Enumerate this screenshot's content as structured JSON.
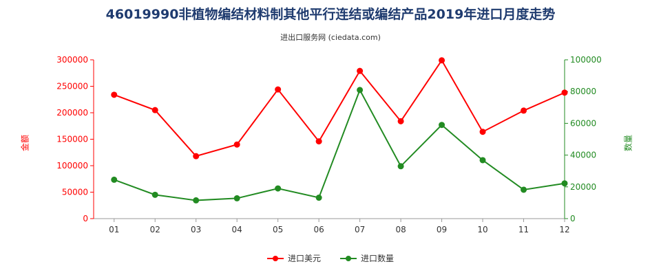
{
  "title": "46019990非植物编结材料制其他平行连结或编结产品2019年进口月度走势",
  "subtitle": "进出口服务网 (ciedata.com)",
  "colors": {
    "amount": "#ff0000",
    "quantity": "#228b22"
  },
  "chart_data": {
    "type": "line",
    "categories": [
      "01",
      "02",
      "03",
      "04",
      "05",
      "06",
      "07",
      "08",
      "09",
      "10",
      "11",
      "12"
    ],
    "series": [
      {
        "name": "进口美元",
        "axis": "left",
        "color": "#ff0000",
        "values": [
          234000,
          205000,
          118000,
          140000,
          244000,
          146000,
          279000,
          184000,
          299000,
          164000,
          204000,
          238000
        ]
      },
      {
        "name": "进口数量",
        "axis": "right",
        "color": "#228b22",
        "values": [
          24500,
          15000,
          11500,
          12800,
          19000,
          13200,
          81000,
          33000,
          59000,
          36800,
          18200,
          22200
        ]
      }
    ],
    "y_left": {
      "label": "金额",
      "range": [
        0,
        300000
      ],
      "ticks": [
        "0",
        "50000",
        "100000",
        "150000",
        "200000",
        "250000",
        "300000"
      ]
    },
    "y_right": {
      "label": "数量",
      "range": [
        0,
        100000
      ],
      "ticks": [
        "0",
        "20000",
        "40000",
        "60000",
        "80000",
        "100000"
      ]
    },
    "grid": false,
    "legend": "bottom"
  }
}
